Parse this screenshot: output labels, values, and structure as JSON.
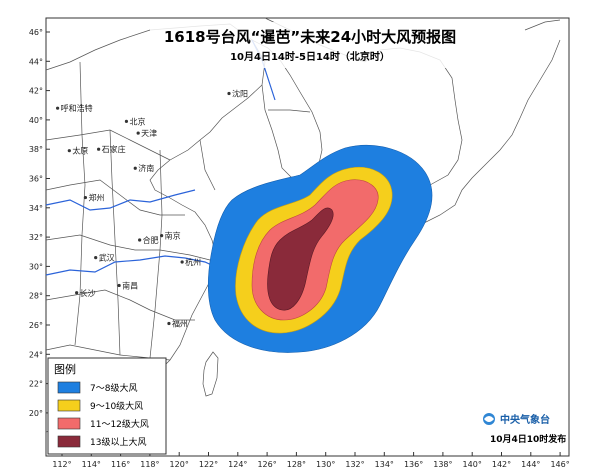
{
  "header": {
    "title": "1618号台风“暹芭”未来24小时大风预报图",
    "subtitle": "10月4日14时-5日14时（北京时）"
  },
  "axes": {
    "lon_ticks": [
      "112°",
      "114°",
      "116°",
      "118°",
      "120°",
      "122°",
      "124°",
      "126°",
      "128°",
      "130°",
      "132°",
      "134°",
      "136°",
      "138°",
      "140°",
      "142°",
      "144°",
      "146°"
    ],
    "lat_ticks": [
      "46°",
      "44°",
      "42°",
      "40°",
      "38°",
      "36°",
      "34°",
      "32°",
      "30°",
      "28°",
      "26°",
      "24°",
      "22°",
      "20°"
    ]
  },
  "cities": [
    {
      "name": "呼和浩特",
      "lon": 111.7,
      "lat": 40.8
    },
    {
      "name": "北京",
      "lon": 116.4,
      "lat": 39.9
    },
    {
      "name": "天津",
      "lon": 117.2,
      "lat": 39.1
    },
    {
      "name": "沈阳",
      "lon": 123.4,
      "lat": 41.8
    },
    {
      "name": "石家庄",
      "lon": 114.5,
      "lat": 38.0
    },
    {
      "name": "太原",
      "lon": 112.5,
      "lat": 37.9
    },
    {
      "name": "济南",
      "lon": 117.0,
      "lat": 36.7
    },
    {
      "name": "郑州",
      "lon": 113.6,
      "lat": 34.7
    },
    {
      "name": "合肥",
      "lon": 117.3,
      "lat": 31.8
    },
    {
      "name": "南京",
      "lon": 118.8,
      "lat": 32.1
    },
    {
      "name": "武汉",
      "lon": 114.3,
      "lat": 30.6
    },
    {
      "name": "杭州",
      "lon": 120.2,
      "lat": 30.3
    },
    {
      "name": "长沙",
      "lon": 113.0,
      "lat": 28.2
    },
    {
      "name": "南昌",
      "lon": 115.9,
      "lat": 28.7
    },
    {
      "name": "福州",
      "lon": 119.3,
      "lat": 26.1
    }
  ],
  "legend": {
    "title": "图例",
    "items": [
      {
        "label": "7～8级大风",
        "color": "#1e7fe0"
      },
      {
        "label": "9～10级大风",
        "color": "#f5cf1c"
      },
      {
        "label": "11～12级大风",
        "color": "#f26b6b"
      },
      {
        "label": "13级以上大风",
        "color": "#8a2a3a"
      }
    ]
  },
  "footer": {
    "org": "中央气象台",
    "issue": "10月4日10时发布"
  },
  "colors": {
    "land": "#ffffff",
    "sea": "#ffffff",
    "border": "#555555",
    "river": "#2b63d9"
  }
}
